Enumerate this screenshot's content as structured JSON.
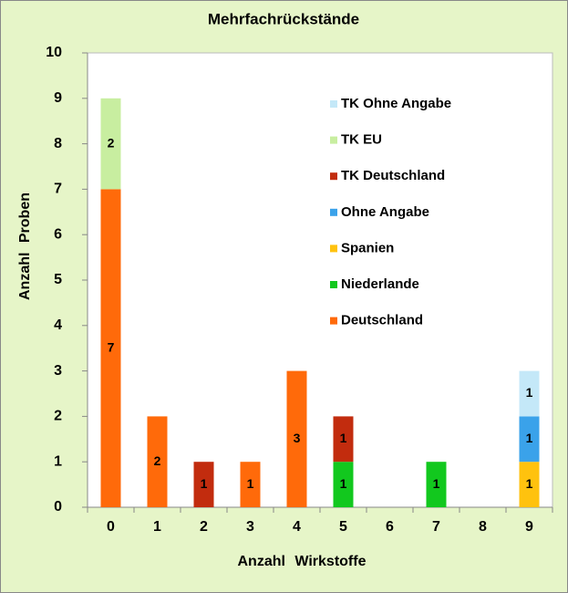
{
  "chart_data": {
    "type": "stacked_bar",
    "title": "Mehrfachrückstände",
    "x_label": "Anzahl Wirkstoffe",
    "y_label": "Anzahl Proben",
    "categories": [
      "0",
      "1",
      "2",
      "3",
      "4",
      "5",
      "6",
      "7",
      "8",
      "9"
    ],
    "series": [
      {
        "name": "Deutschland",
        "color": "#ff6a0a",
        "values": [
          7,
          2,
          null,
          1,
          3,
          null,
          null,
          null,
          null,
          null
        ]
      },
      {
        "name": "Niederlande",
        "color": "#12c81e",
        "values": [
          null,
          null,
          null,
          null,
          null,
          1,
          null,
          1,
          null,
          null
        ]
      },
      {
        "name": "Spanien",
        "color": "#ffc20e",
        "values": [
          null,
          null,
          null,
          null,
          null,
          null,
          null,
          null,
          null,
          1
        ]
      },
      {
        "name": "Ohne Angabe",
        "color": "#3aa2ea",
        "values": [
          null,
          null,
          null,
          null,
          null,
          null,
          null,
          null,
          null,
          1
        ]
      },
      {
        "name": "TK Deutschland",
        "color": "#c22c0e",
        "values": [
          null,
          null,
          1,
          null,
          null,
          1,
          null,
          null,
          null,
          null
        ]
      },
      {
        "name": "TK EU",
        "color": "#c8eea0",
        "values": [
          2,
          null,
          null,
          null,
          null,
          null,
          null,
          null,
          null,
          null
        ]
      },
      {
        "name": "TK Ohne Angabe",
        "color": "#c4e8f8",
        "values": [
          null,
          null,
          null,
          null,
          null,
          null,
          null,
          null,
          null,
          1
        ]
      }
    ],
    "ylim": [
      0,
      10
    ],
    "yticks": [
      0,
      1,
      2,
      3,
      4,
      5,
      6,
      7,
      8,
      9,
      10
    ],
    "grid": false,
    "legend": "right"
  }
}
